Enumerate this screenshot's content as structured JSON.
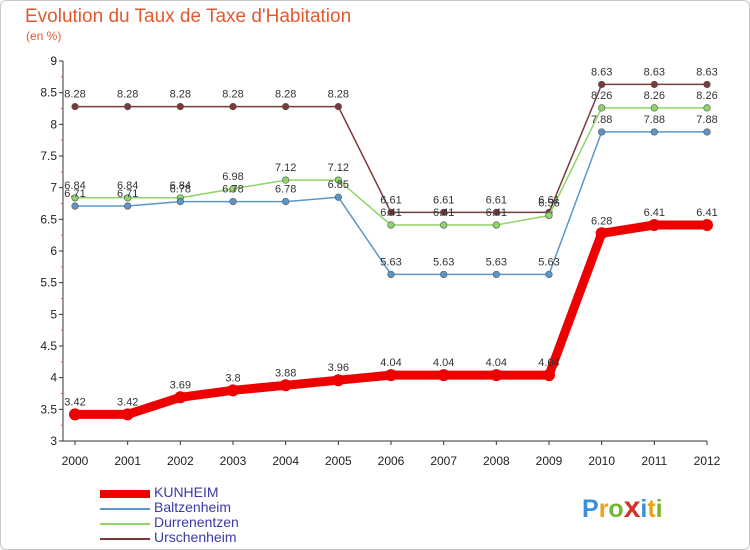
{
  "header": {
    "title": "Evolution du Taux de Taxe d'Habitation",
    "subtitle": "(en %)"
  },
  "logo": {
    "letters": [
      "P",
      "r",
      "o",
      "x",
      "i",
      "t",
      "i"
    ],
    "colors": [
      "#3a8fd6",
      "#e8a317",
      "#74b62e",
      "#d8322a",
      "#3a8fd6",
      "#e8a317",
      "#74b62e"
    ]
  },
  "chart_data": {
    "type": "line",
    "x": [
      "2000",
      "2001",
      "2002",
      "2003",
      "2004",
      "2005",
      "2006",
      "2007",
      "2008",
      "2009",
      "2010",
      "2011",
      "2012"
    ],
    "ylim": [
      3,
      9
    ],
    "yticks": [
      "3",
      "3.5",
      "4",
      "4.5",
      "5",
      "5.5",
      "6",
      "6.5",
      "7",
      "7.5",
      "8",
      "8.5",
      "9"
    ],
    "grid": false,
    "legend_position": "bottom-left",
    "series": [
      {
        "name": "KUNHEIM",
        "color": "#ee0000",
        "values": [
          3.42,
          3.42,
          3.69,
          3.8,
          3.88,
          3.96,
          4.04,
          4.04,
          4.04,
          4.04,
          6.28,
          6.41,
          6.41
        ],
        "labels": [
          "3.42",
          "3.42",
          "3.69",
          "3.8",
          "3.88",
          "3.96",
          "4.04",
          "4.04",
          "4.04",
          "4.04",
          "6.28",
          "6.41",
          "6.41"
        ]
      },
      {
        "name": "Baltzenheim",
        "color": "#5b96c7",
        "values": [
          6.71,
          6.71,
          6.78,
          6.78,
          6.78,
          6.85,
          5.63,
          5.63,
          5.63,
          5.63,
          7.88,
          7.88,
          7.88
        ],
        "labels": [
          "6.71",
          "6.71",
          "6.78",
          "6.78",
          "6.78",
          "6.85",
          "5.63",
          "5.63",
          "5.63",
          "5.63",
          "7.88",
          "7.88",
          "7.88"
        ]
      },
      {
        "name": "Durrenentzen",
        "color": "#8ed466",
        "values": [
          6.84,
          6.84,
          6.84,
          6.98,
          7.12,
          7.12,
          6.41,
          6.41,
          6.41,
          6.56,
          8.26,
          8.26,
          8.26
        ],
        "labels": [
          "6.84",
          "6.84",
          "6.84",
          "6.98",
          "7.12",
          "7.12",
          "6.41",
          "6.41",
          "6.41",
          "6.56",
          "8.26",
          "8.26",
          "8.26"
        ]
      },
      {
        "name": "Urschenheim",
        "color": "#7a3a3a",
        "values": [
          8.28,
          8.28,
          8.28,
          8.28,
          8.28,
          8.28,
          6.61,
          6.61,
          6.61,
          6.61,
          8.63,
          8.63,
          8.63
        ],
        "labels": [
          "8.28",
          "8.28",
          "8.28",
          "8.28",
          "8.28",
          "8.28",
          "6.61",
          "6.61",
          "6.61",
          "6.61",
          "8.63",
          "8.63",
          "8.63"
        ]
      }
    ]
  }
}
